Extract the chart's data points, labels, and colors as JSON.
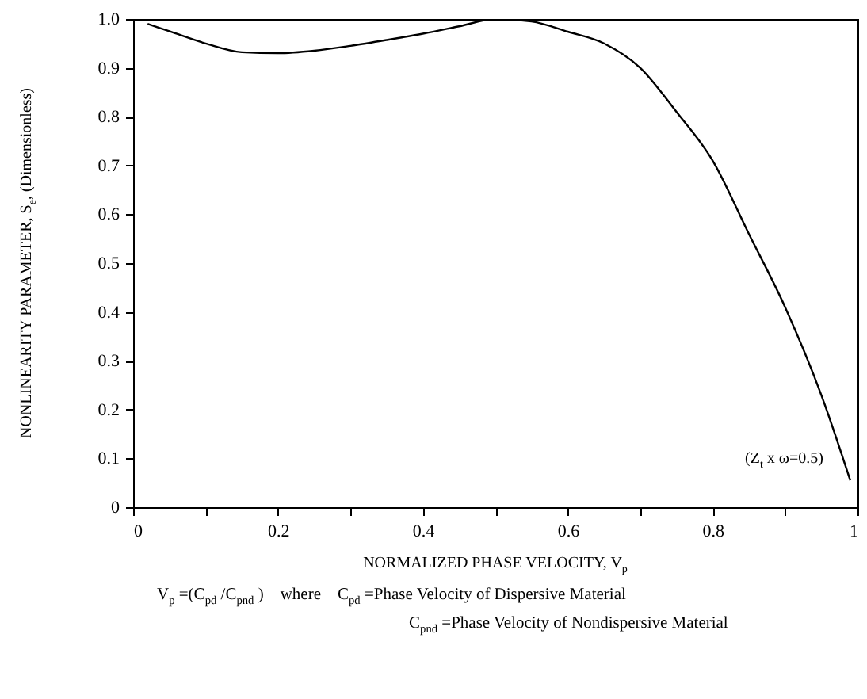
{
  "chart_data": {
    "type": "line",
    "xlabel": "NORMALIZED PHASE VELOCITY, V$_{p}$",
    "ylabel": "NONLINEARITY PARAMETER, S$_{e}$, (Dimensionless)",
    "x": [
      0.02,
      0.05,
      0.1,
      0.15,
      0.2,
      0.25,
      0.3,
      0.35,
      0.4,
      0.45,
      0.5,
      0.55,
      0.6,
      0.65,
      0.7,
      0.75,
      0.8,
      0.85,
      0.9,
      0.95,
      0.99
    ],
    "series": [
      {
        "color": "#000000",
        "values": [
          0.99,
          0.975,
          0.95,
          0.932,
          0.93,
          0.935,
          0.945,
          0.957,
          0.97,
          0.985,
          1.0,
          0.995,
          0.974,
          0.95,
          0.9,
          0.81,
          0.71,
          0.56,
          0.41,
          0.23,
          0.055
        ]
      }
    ],
    "xlim": [
      0,
      1
    ],
    "ylim": [
      0,
      1
    ],
    "xticks": [
      0,
      {
        "value": 0.1,
        "label": null
      },
      0.2,
      {
        "value": 0.3,
        "label": null
      },
      0.4,
      {
        "value": 0.5,
        "label": null
      },
      0.6,
      {
        "value": 0.7,
        "label": null
      },
      0.8,
      {
        "value": 0.9,
        "label": null
      },
      1
    ],
    "yticks": [
      0,
      0.1,
      0.2,
      0.3,
      0.4,
      0.5,
      0.6,
      0.7,
      0.8,
      0.9,
      {
        "value": 1,
        "label": "1.0"
      }
    ],
    "grid": false,
    "line_style": "solid",
    "marker": "none",
    "annotations": [
      "(Z$_{t}$ x ω=0.5)",
      "V$_{p}$ =(C$_{pd}$ /C$_{pnd}$ )    where    C$_{pd}$ =Phase Velocity of Dispersive Material",
      "C$_{pnd}$ =Phase Velocity of Nondispersive Material"
    ]
  }
}
